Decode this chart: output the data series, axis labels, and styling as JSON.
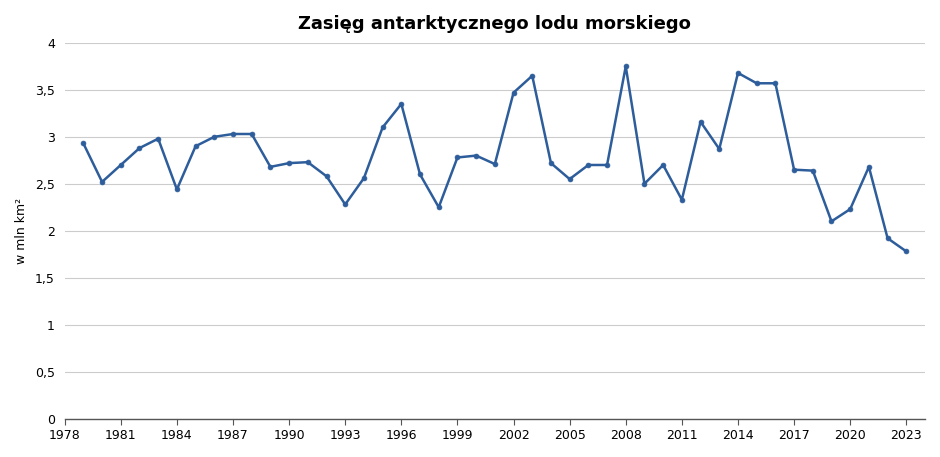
{
  "title": "Zasięg antarktycznego lodu morskiego",
  "ylabel": "w mln km²",
  "years": [
    1979,
    1980,
    1981,
    1982,
    1983,
    1984,
    1985,
    1986,
    1987,
    1988,
    1989,
    1990,
    1991,
    1992,
    1993,
    1994,
    1995,
    1996,
    1997,
    1998,
    1999,
    2000,
    2001,
    2002,
    2003,
    2004,
    2005,
    2006,
    2007,
    2008,
    2009,
    2010,
    2011,
    2012,
    2013,
    2014,
    2015,
    2016,
    2017,
    2018,
    2019,
    2020,
    2021,
    2022,
    2023
  ],
  "values": [
    2.93,
    2.52,
    2.7,
    2.88,
    2.98,
    2.44,
    2.9,
    3.0,
    3.03,
    3.03,
    2.68,
    2.72,
    2.73,
    2.58,
    2.28,
    2.56,
    3.1,
    3.35,
    2.6,
    2.25,
    2.78,
    2.8,
    2.71,
    3.47,
    3.65,
    2.72,
    2.55,
    2.7,
    2.7,
    3.75,
    2.5,
    2.7,
    2.33,
    3.16,
    2.87,
    3.68,
    3.57,
    3.57,
    2.65,
    2.64,
    2.1,
    2.23,
    2.68,
    1.92,
    1.78
  ],
  "line_color": "#2e5d9b",
  "marker_color": "#2e5d9b",
  "marker_size": 3.5,
  "line_width": 1.8,
  "xlim": [
    1978,
    2024
  ],
  "ylim": [
    0,
    4.0
  ],
  "xticks": [
    1978,
    1981,
    1984,
    1987,
    1990,
    1993,
    1996,
    1999,
    2002,
    2005,
    2008,
    2011,
    2014,
    2017,
    2020,
    2023
  ],
  "yticks": [
    0,
    0.5,
    1.0,
    1.5,
    2.0,
    2.5,
    3.0,
    3.5,
    4.0
  ],
  "ytick_labels": [
    "0",
    "0,5",
    "1",
    "1,5",
    "2",
    "2,5",
    "3",
    "3,5",
    "4"
  ],
  "grid_color": "#cccccc",
  "background_color": "#ffffff",
  "title_fontsize": 13,
  "label_fontsize": 9
}
